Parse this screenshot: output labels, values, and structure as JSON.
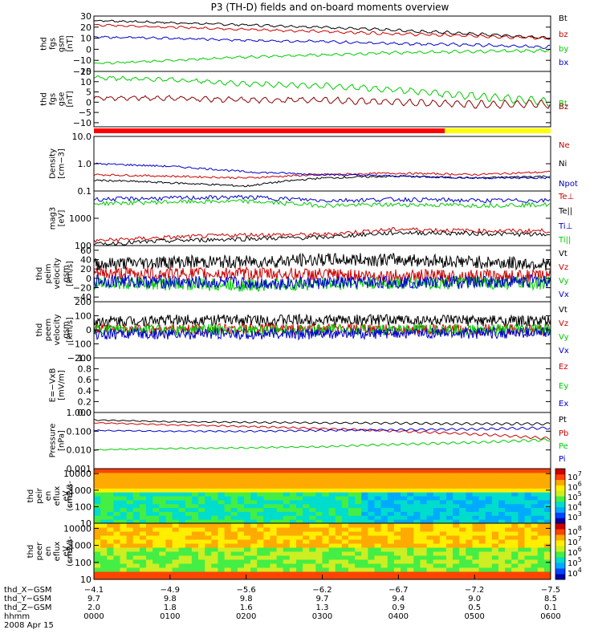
{
  "title": "P3 (TH-D) fields and on-board moments overview",
  "panels": [
    {
      "id": "fgs-gsm",
      "ylabel": [
        "thd",
        "fgs",
        "gsm",
        "[nT]"
      ],
      "yticks": [
        "30",
        "20",
        "10",
        "0",
        "−10",
        "−20"
      ],
      "ylim": [
        -20,
        30
      ],
      "log": false,
      "legend": [
        {
          "text": "Bt",
          "color": "#000000"
        },
        {
          "text": "bz",
          "color": "#cc0000"
        },
        {
          "text": "by",
          "color": "#00cc00"
        },
        {
          "text": "bx",
          "color": "#0000cc"
        }
      ]
    },
    {
      "id": "fgs-gse",
      "ylabel": [
        "thd",
        "fgs",
        "gse",
        "[nT]"
      ],
      "yticks": [
        "15",
        "10",
        "5",
        "0",
        "−5",
        "−10"
      ],
      "ylim": [
        -12,
        15
      ],
      "log": false,
      "legend": [
        {
          "text": "Bt",
          "color": "#00cc00"
        },
        {
          "text": "Bz",
          "color": "#8b0000"
        }
      ]
    },
    {
      "id": "density",
      "ylabel": [
        "Density",
        "[cm−3]"
      ],
      "yticks": [
        "10.0",
        "1.0",
        "0.1"
      ],
      "ylim": [
        0.1,
        10
      ],
      "log": true,
      "legend": [
        {
          "text": "Ne",
          "color": "#cc0000"
        },
        {
          "text": "Ni",
          "color": "#000000"
        },
        {
          "text": "Npot",
          "color": "#0000cc"
        }
      ]
    },
    {
      "id": "temperature",
      "ylabel": [
        "mag3",
        "[eV]"
      ],
      "yticks": [
        "1000",
        "100"
      ],
      "ylim": [
        100,
        10000
      ],
      "log": true,
      "legend": [
        {
          "text": "Te⊥",
          "color": "#cc0000"
        },
        {
          "text": "Te||",
          "color": "#000000"
        },
        {
          "text": "Ti⊥",
          "color": "#0000cc"
        },
        {
          "text": "Ti||",
          "color": "#00cc00"
        }
      ]
    },
    {
      "id": "peim-velocity",
      "ylabel": [
        "thd",
        "peim",
        "velocity",
        "gsm",
        "[km/s]"
      ],
      "yticks": [
        "60",
        "40",
        "20",
        "0",
        "−20",
        "−40"
      ],
      "ylim": [
        -50,
        70
      ],
      "log": false,
      "legend": [
        {
          "text": "Vt",
          "color": "#000000"
        },
        {
          "text": "Vz",
          "color": "#cc0000"
        },
        {
          "text": "Vy",
          "color": "#00cc00"
        },
        {
          "text": "Vx",
          "color": "#0000cc"
        }
      ]
    },
    {
      "id": "peem-velocity",
      "ylabel": [
        "thd",
        "peem",
        "velocity",
        "gsm",
        "[km/s]"
      ],
      "yticks": [
        "200",
        "100",
        "0",
        "−100",
        "−200"
      ],
      "ylim": [
        -200,
        200
      ],
      "log": false,
      "legend": [
        {
          "text": "Vt",
          "color": "#000000"
        },
        {
          "text": "Vz",
          "color": "#cc0000"
        },
        {
          "text": "Vy",
          "color": "#00cc00"
        },
        {
          "text": "Vx",
          "color": "#0000cc"
        }
      ]
    },
    {
      "id": "efield",
      "ylabel": [
        "E=−VxB",
        "[mV/m]"
      ],
      "yticks": [
        "1.0",
        "0.8",
        "0.6",
        "0.4",
        "0.2",
        "0.0"
      ],
      "ylim": [
        0,
        1
      ],
      "log": false,
      "legend": [
        {
          "text": "Ez",
          "color": "#cc0000"
        },
        {
          "text": "Ey",
          "color": "#00cc00"
        },
        {
          "text": "Ex",
          "color": "#0000cc"
        }
      ]
    },
    {
      "id": "pressure",
      "ylabel": [
        "Pressure",
        "[nPa]"
      ],
      "yticks": [
        "1.000",
        "0.100",
        "0.010",
        "0.001"
      ],
      "ylim": [
        0.001,
        1
      ],
      "log": true,
      "legend": [
        {
          "text": "Pt",
          "color": "#000000"
        },
        {
          "text": "Pb",
          "color": "#cc0000"
        },
        {
          "text": "Pe",
          "color": "#00cc00"
        },
        {
          "text": "Pi",
          "color": "#0000cc"
        }
      ]
    },
    {
      "id": "peir-spec",
      "ylabel": [
        "thd",
        "peir",
        "en",
        "eflux",
        "eV",
        "(cm2-s-",
        "sr-eV)"
      ],
      "yticks": [
        "10000",
        "1000",
        "100",
        "10"
      ],
      "ylim": [
        10,
        20000
      ],
      "log": true,
      "colorbar": [
        "10^7",
        "10^6",
        "10^5",
        "10^4",
        "10^3"
      ]
    },
    {
      "id": "peer-spec",
      "ylabel": [
        "thd",
        "peer",
        "en",
        "eflux",
        "eV",
        "(cm2-s-",
        "sr-eV)"
      ],
      "yticks": [
        "10000",
        "1000",
        "100",
        "10"
      ],
      "ylim": [
        10,
        20000
      ],
      "log": true,
      "colorbar": [
        "10^8",
        "10^7",
        "10^6",
        "10^5",
        "10^4"
      ]
    }
  ],
  "xaxis": {
    "rows": [
      {
        "label": "thd_X−GSM",
        "values": [
          "−4.1",
          "−4.9",
          "−5.6",
          "−6.2",
          "−6.7",
          "−7.2",
          "−7.5"
        ]
      },
      {
        "label": "thd_Y−GSM",
        "values": [
          "9.7",
          "9.8",
          "9.8",
          "9.7",
          "9.4",
          "9.0",
          "8.5"
        ]
      },
      {
        "label": "thd_Z−GSM",
        "values": [
          "2.0",
          "1.8",
          "1.6",
          "1.3",
          "0.9",
          "0.5",
          "0.1"
        ]
      },
      {
        "label": "hhmm",
        "values": [
          "0000",
          "0100",
          "0200",
          "0300",
          "0400",
          "0500",
          "0600"
        ]
      }
    ],
    "date": "2008 Apr 15"
  },
  "chart_data": {
    "type": "line",
    "title": "P3 (TH-D) fields and on-board moments overview",
    "x": [
      "0000",
      "0100",
      "0200",
      "0300",
      "0400",
      "0500",
      "0600"
    ],
    "xlabel": "hhmm",
    "series": [
      {
        "panel": "fgs-gsm",
        "name": "Bt",
        "values": [
          26,
          24,
          22,
          20,
          17,
          14,
          10
        ]
      },
      {
        "panel": "fgs-gsm",
        "name": "bz",
        "values": [
          22,
          20,
          18,
          16,
          14,
          12,
          10
        ]
      },
      {
        "panel": "fgs-gsm",
        "name": "by",
        "values": [
          -13,
          -10,
          -7,
          -5,
          -3,
          -2,
          -1
        ]
      },
      {
        "panel": "fgs-gsm",
        "name": "bx",
        "values": [
          11,
          10,
          8,
          7,
          5,
          4,
          2
        ]
      },
      {
        "panel": "fgs-gse",
        "name": "Bt",
        "values": [
          12,
          11,
          9,
          8,
          6,
          3,
          0
        ]
      },
      {
        "panel": "fgs-gse",
        "name": "Bz",
        "values": [
          2,
          2,
          1,
          1,
          0,
          -1,
          -1
        ]
      },
      {
        "panel": "density",
        "name": "Ne",
        "values": [
          0.4,
          0.35,
          0.3,
          0.4,
          0.45,
          0.4,
          0.5
        ]
      },
      {
        "panel": "density",
        "name": "Ni",
        "values": [
          0.25,
          0.2,
          0.15,
          0.3,
          0.35,
          0.3,
          0.35
        ]
      },
      {
        "panel": "density",
        "name": "Npot",
        "values": [
          1.0,
          0.8,
          0.5,
          0.4,
          0.35,
          0.3,
          0.3
        ]
      },
      {
        "panel": "temperature",
        "name": "Te⊥",
        "values": [
          150,
          200,
          250,
          250,
          400,
          350,
          350
        ]
      },
      {
        "panel": "temperature",
        "name": "Te||",
        "values": [
          110,
          150,
          180,
          200,
          300,
          280,
          250
        ]
      },
      {
        "panel": "temperature",
        "name": "Ti⊥",
        "values": [
          5000,
          5500,
          6000,
          4500,
          5000,
          4500,
          4500
        ]
      },
      {
        "panel": "temperature",
        "name": "Ti||",
        "values": [
          3500,
          4000,
          4200,
          3000,
          3200,
          3000,
          3200
        ]
      },
      {
        "panel": "peim-velocity",
        "name": "Vt",
        "values": [
          30,
          35,
          35,
          40,
          40,
          35,
          30
        ]
      },
      {
        "panel": "peim-velocity",
        "name": "Vz",
        "values": [
          10,
          10,
          10,
          8,
          5,
          5,
          5
        ]
      },
      {
        "panel": "peim-velocity",
        "name": "Vy",
        "values": [
          -10,
          -12,
          -15,
          -12,
          -10,
          -10,
          -10
        ]
      },
      {
        "panel": "peim-velocity",
        "name": "Vx",
        "values": [
          -5,
          -8,
          -10,
          -10,
          -8,
          -8,
          -5
        ]
      },
      {
        "panel": "peem-velocity",
        "name": "Vt",
        "values": [
          60,
          70,
          70,
          70,
          70,
          65,
          60
        ]
      },
      {
        "panel": "peem-velocity",
        "name": "Vz",
        "values": [
          5,
          5,
          5,
          5,
          0,
          0,
          0
        ]
      },
      {
        "panel": "peem-velocity",
        "name": "Vy",
        "values": [
          0,
          0,
          0,
          0,
          0,
          0,
          0
        ]
      },
      {
        "panel": "peem-velocity",
        "name": "Vx",
        "values": [
          -30,
          -30,
          -30,
          -30,
          -25,
          -25,
          -20
        ]
      },
      {
        "panel": "pressure",
        "name": "Pt",
        "values": [
          0.4,
          0.32,
          0.3,
          0.28,
          0.27,
          0.25,
          0.25
        ]
      },
      {
        "panel": "pressure",
        "name": "Pb",
        "values": [
          0.28,
          0.22,
          0.18,
          0.14,
          0.1,
          0.07,
          0.04
        ]
      },
      {
        "panel": "pressure",
        "name": "Pe",
        "values": [
          0.01,
          0.012,
          0.013,
          0.015,
          0.02,
          0.025,
          0.035
        ]
      },
      {
        "panel": "pressure",
        "name": "Pi",
        "values": [
          0.11,
          0.1,
          0.1,
          0.11,
          0.12,
          0.13,
          0.15
        ]
      }
    ]
  }
}
